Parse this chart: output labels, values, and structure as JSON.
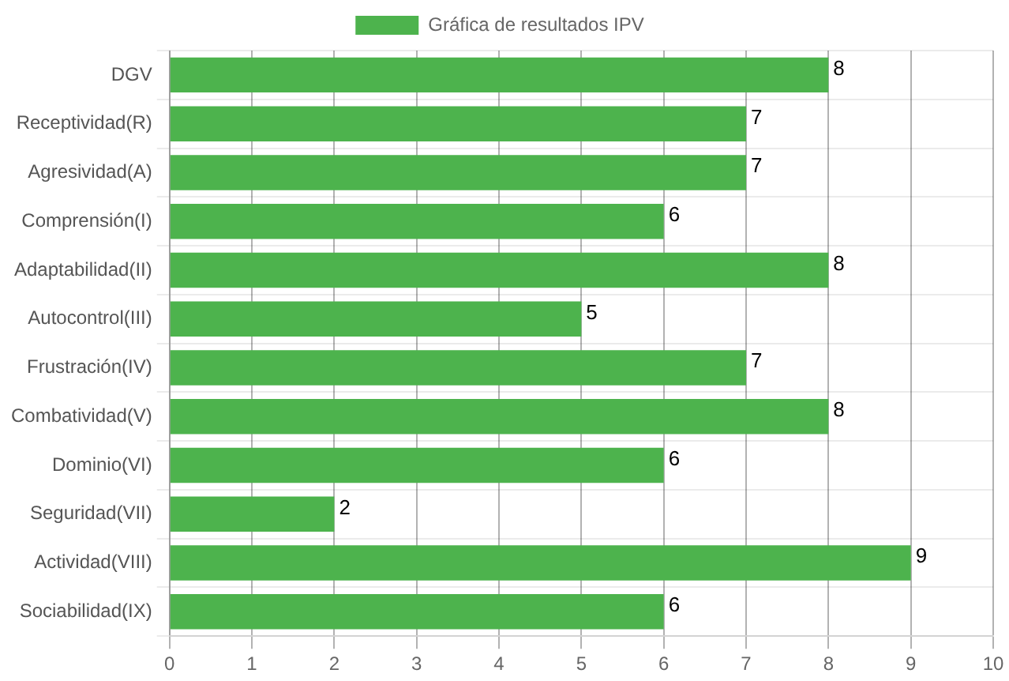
{
  "chart_data": {
    "type": "bar",
    "orientation": "horizontal",
    "categories": [
      "DGV",
      "Receptividad(R)",
      "Agresividad(A)",
      "Comprensión(I)",
      "Adaptabilidad(II)",
      "Autocontrol(III)",
      "Frustración(IV)",
      "Combatividad(V)",
      "Dominio(VI)",
      "Seguridad(VII)",
      "Actividad(VIII)",
      "Sociabilidad(IX)"
    ],
    "series": [
      {
        "name": "Gráfica de resultados IPV",
        "color": "#4db34d",
        "values": [
          8,
          7,
          7,
          6,
          8,
          5,
          7,
          8,
          6,
          2,
          9,
          6
        ]
      }
    ],
    "xlim": [
      0,
      10
    ],
    "xticks": [
      0,
      1,
      2,
      3,
      4,
      5,
      6,
      7,
      8,
      9,
      10
    ],
    "grid": true,
    "legend": "top",
    "data_labels": true
  }
}
